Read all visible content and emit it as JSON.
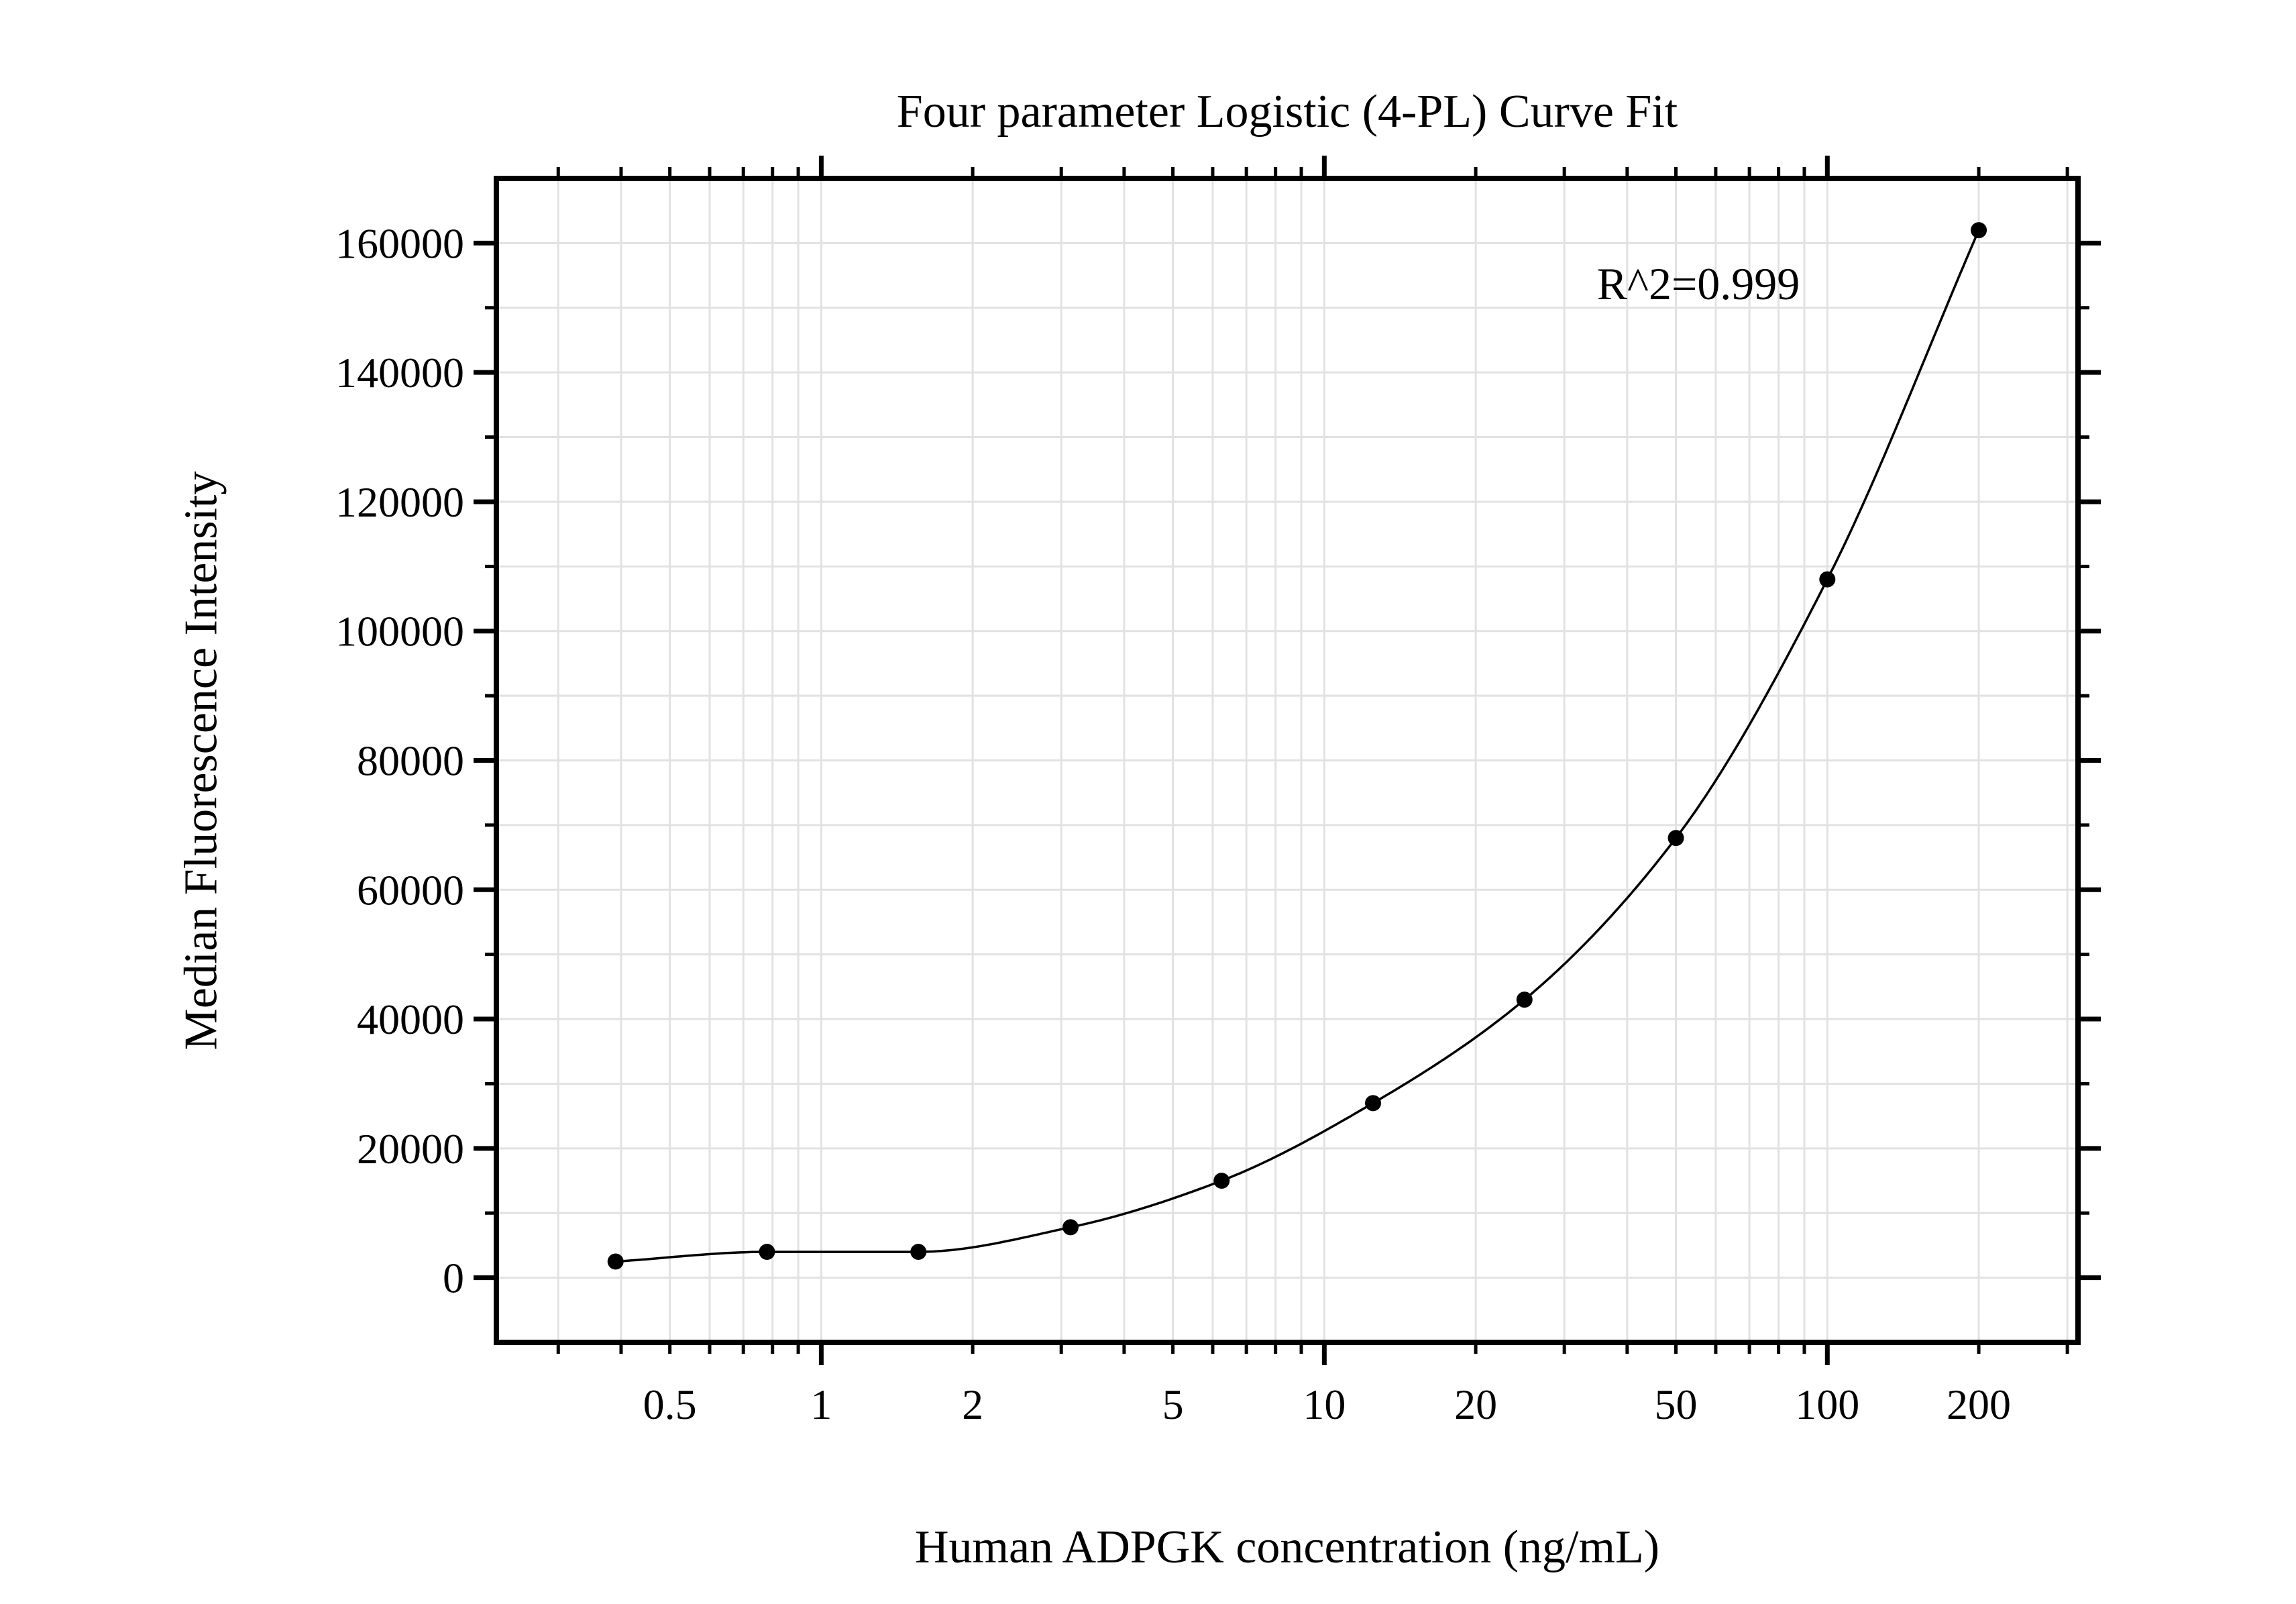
{
  "chart_data": {
    "type": "scatter",
    "title": "Four parameter Logistic (4-PL) Curve Fit",
    "xlabel": "Human ADPGK concentration (ng/mL)",
    "ylabel": "Median Fluorescence Intensity",
    "annotation": "R^2=0.999",
    "x_scale": "log",
    "y_scale": "linear",
    "xlim": [
      0.226,
      315
    ],
    "ylim": [
      -10000,
      170000
    ],
    "grid": true,
    "legend": "none",
    "x_major_ticks": [
      1,
      10,
      100
    ],
    "x_minor_ticks": [
      0.3,
      0.4,
      0.5,
      0.6,
      0.7,
      0.8,
      0.9,
      2,
      3,
      4,
      5,
      6,
      7,
      8,
      9,
      20,
      30,
      40,
      50,
      60,
      70,
      80,
      90,
      200,
      300
    ],
    "x_labeled_ticks": [
      0.5,
      1,
      2,
      5,
      10,
      20,
      50,
      100,
      200
    ],
    "x_tick_labels": [
      "0.5",
      "1",
      "2",
      "5",
      "10",
      "20",
      "50",
      "100",
      "200"
    ],
    "y_major_ticks": [
      0,
      20000,
      40000,
      60000,
      80000,
      100000,
      120000,
      140000,
      160000
    ],
    "y_tick_labels": [
      "0",
      "20000",
      "40000",
      "60000",
      "80000",
      "100000",
      "120000",
      "140000",
      "160000"
    ],
    "y_minor_ticks": [
      10000,
      30000,
      50000,
      70000,
      90000,
      110000,
      130000,
      150000
    ],
    "series": [
      {
        "name": "standard-curve",
        "marker": "filled-circle",
        "fit": "4PL",
        "x": [
          0.39,
          0.78,
          1.56,
          3.13,
          6.25,
          12.5,
          25,
          50,
          100,
          200
        ],
        "y": [
          2500,
          4000,
          4000,
          7800,
          15000,
          27000,
          43000,
          68000,
          108000,
          162000
        ]
      }
    ]
  },
  "colors": {
    "background": "#ffffff",
    "text": "#000000",
    "axis": "#000000",
    "grid": "#e2e2e2",
    "curve": "#000000",
    "marker": "#000000"
  }
}
